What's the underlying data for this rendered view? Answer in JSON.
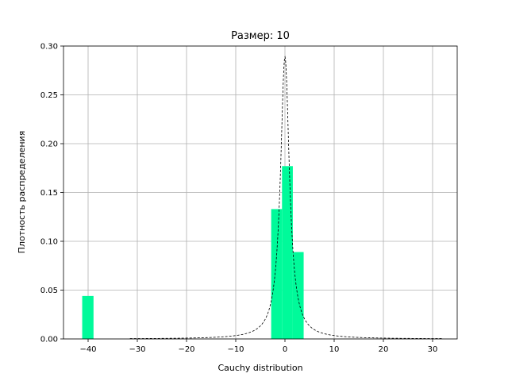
{
  "chart_data": {
    "type": "bar",
    "title": "Размер: 10",
    "xlabel": "Cauchy distribution",
    "ylabel": "Плотность распределения",
    "xlim": [
      -45,
      35
    ],
    "ylim": [
      0,
      0.3
    ],
    "grid": true,
    "x_ticks": [
      -40,
      -30,
      -20,
      -10,
      0,
      10,
      20,
      30
    ],
    "y_ticks": [
      0,
      0.05,
      0.1,
      0.15,
      0.2,
      0.25,
      0.3
    ],
    "x_tick_labels": [
      "−40",
      "−30",
      "−20",
      "−10",
      "0",
      "10",
      "20",
      "30"
    ],
    "y_tick_labels": [
      "0.00",
      "0.05",
      "0.10",
      "0.15",
      "0.20",
      "0.25",
      "0.30"
    ],
    "series": [
      {
        "type": "histogram",
        "color": "#00fa9a",
        "bins": [
          {
            "x0": -41.2,
            "x1": -38.9,
            "value": 0.044
          },
          {
            "x0": -2.8,
            "x1": -0.6,
            "value": 0.133
          },
          {
            "x0": -0.6,
            "x1": 1.6,
            "value": 0.177
          },
          {
            "x0": 1.6,
            "x1": 3.8,
            "value": 0.089
          }
        ]
      },
      {
        "type": "line",
        "style": "dashed",
        "color": "#000000",
        "distribution": "cauchy",
        "x_range": [
          -31.5,
          32
        ],
        "peak": 0.289,
        "scale": 1.1
      }
    ]
  }
}
